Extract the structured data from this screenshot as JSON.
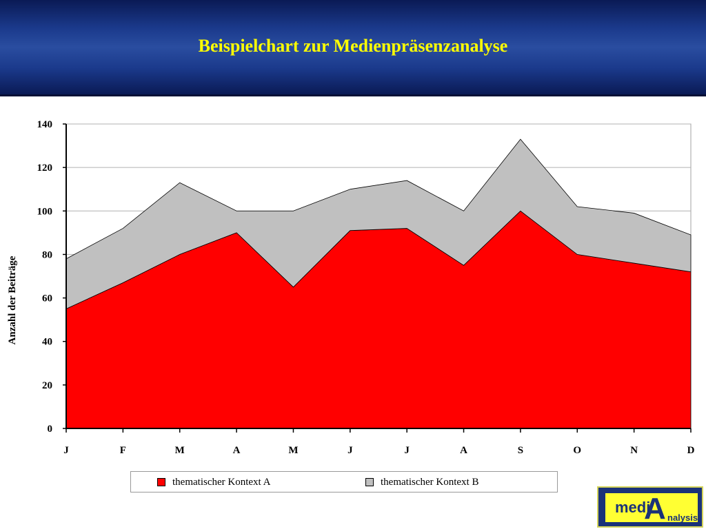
{
  "header": {
    "title": "Beispielchart zur Medienpräsenzanalyse"
  },
  "chart_data": {
    "type": "area",
    "stacked": true,
    "title": "",
    "xlabel": "",
    "ylabel": "Anzahl der Beiträge",
    "categories": [
      "J",
      "F",
      "M",
      "A",
      "M",
      "J",
      "J",
      "A",
      "S",
      "O",
      "N",
      "D"
    ],
    "series": [
      {
        "name": "thematischer Kontext A",
        "color": "#ff0000",
        "values": [
          55,
          67,
          80,
          90,
          65,
          91,
          92,
          75,
          100,
          80,
          76,
          72
        ]
      },
      {
        "name": "thematischer Kontext B",
        "color": "#c0c0c0",
        "values": [
          23,
          25,
          33,
          10,
          35,
          19,
          22,
          25,
          33,
          22,
          23,
          17
        ]
      }
    ],
    "ylim": [
      0,
      140
    ],
    "yticks": [
      "0",
      "20",
      "40",
      "60",
      "80",
      "100",
      "120",
      "140"
    ],
    "grid": true,
    "legend_position": "bottom"
  },
  "logo": {
    "medi": "medi",
    "a": "A",
    "analysis": "nalysis"
  }
}
